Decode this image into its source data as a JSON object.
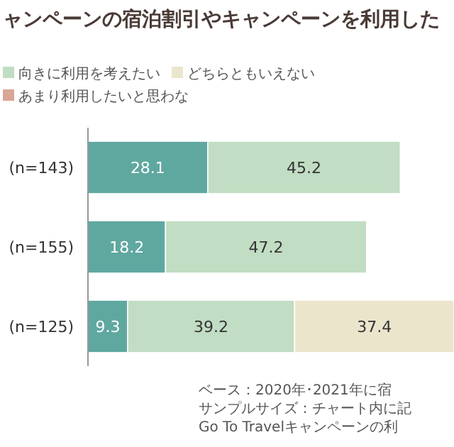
{
  "chart_data": {
    "type": "bar",
    "orientation": "horizontal",
    "stacked": true,
    "title": "ャンペーンの宿泊割引やキャンペーンを利用した",
    "categories": [
      "(n=143)",
      "(n=155)",
      "(n=125)"
    ],
    "series": [
      {
        "color": "#5fa8a0",
        "values": [
          28.1,
          18.2,
          9.3
        ]
      },
      {
        "name": "向きに利用を考えたい",
        "color": "#c1ddc3",
        "values": [
          45.2,
          47.2,
          39.2
        ]
      },
      {
        "name": "どちらともいえない",
        "color": "#ebe5cc",
        "values": [
          null,
          null,
          37.4
        ]
      },
      {
        "name": "あまり利用したいと思わな",
        "color": "#dba597",
        "values": [
          null,
          null,
          null
        ]
      }
    ],
    "data_labels": true,
    "legend": "top",
    "tick_labels": "y",
    "annotations": [
      "ベース：2020年･2021年に宿",
      "サンプルサイズ：チャート内に記",
      "Go To Travelキャンペーンの利"
    ]
  }
}
